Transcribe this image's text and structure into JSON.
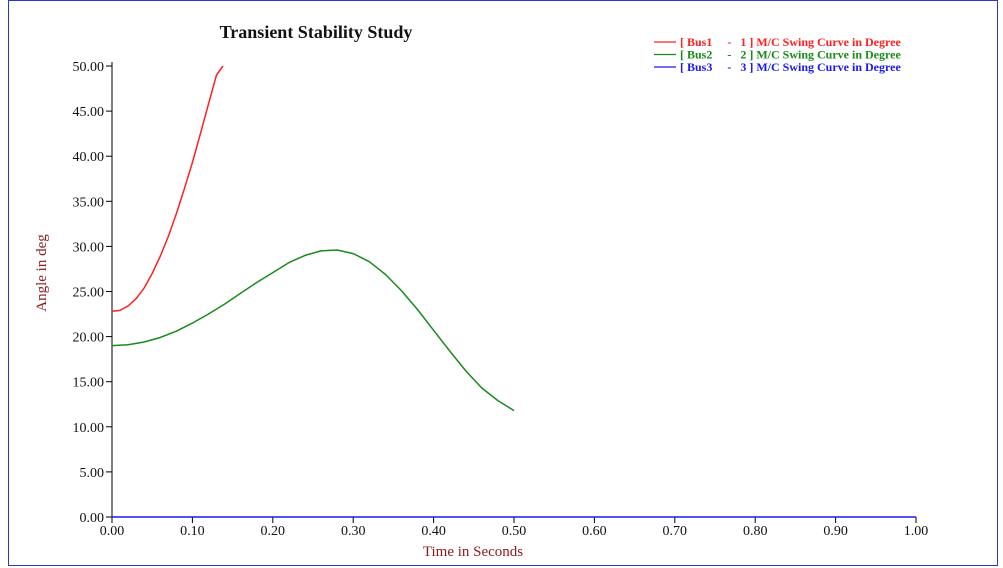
{
  "chart_data": {
    "type": "line",
    "title": "Transient Stability Study",
    "xlabel": "Time in Seconds",
    "ylabel": "Angle in deg",
    "xlim": [
      0,
      1.0
    ],
    "ylim": [
      0,
      50
    ],
    "x_ticks": [
      "0.00",
      "0.10",
      "0.20",
      "0.30",
      "0.40",
      "0.50",
      "0.60",
      "0.70",
      "0.80",
      "0.90",
      "1.00"
    ],
    "y_ticks": [
      "0.00",
      "5.00",
      "10.00",
      "15.00",
      "20.00",
      "25.00",
      "30.00",
      "35.00",
      "40.00",
      "45.00",
      "50.00"
    ],
    "grid": false,
    "legend_position": "top-right",
    "series": [
      {
        "name": "[ Bus1     -   1 ] M/C Swing Curve in Degree",
        "color": "#ff2020",
        "x": [
          0.0,
          0.01,
          0.02,
          0.03,
          0.04,
          0.05,
          0.06,
          0.07,
          0.08,
          0.09,
          0.1,
          0.11,
          0.12,
          0.13,
          0.138
        ],
        "y": [
          22.8,
          22.9,
          23.4,
          24.2,
          25.4,
          27.0,
          28.9,
          31.1,
          33.6,
          36.4,
          39.3,
          42.5,
          45.8,
          49.0,
          50.0
        ]
      },
      {
        "name": "[ Bus2     -   2 ] M/C Swing Curve in Degree",
        "color": "#1a8a1a",
        "x": [
          0.0,
          0.02,
          0.04,
          0.06,
          0.08,
          0.1,
          0.12,
          0.14,
          0.16,
          0.18,
          0.2,
          0.22,
          0.24,
          0.26,
          0.28,
          0.3,
          0.32,
          0.34,
          0.36,
          0.38,
          0.4,
          0.42,
          0.44,
          0.46,
          0.48,
          0.5
        ],
        "y": [
          19.0,
          19.1,
          19.4,
          19.9,
          20.6,
          21.5,
          22.5,
          23.6,
          24.8,
          26.0,
          27.1,
          28.2,
          29.0,
          29.5,
          29.6,
          29.2,
          28.3,
          26.9,
          25.1,
          23.0,
          20.7,
          18.4,
          16.2,
          14.3,
          12.9,
          11.8
        ]
      },
      {
        "name": "[ Bus3     -   3 ] M/C Swing Curve in Degree",
        "color": "#1a1aee",
        "x": [
          0.0,
          0.1,
          0.2,
          0.3,
          0.4,
          0.5,
          0.6,
          0.7,
          0.8,
          0.9,
          1.0
        ],
        "y": [
          0,
          0,
          0,
          0,
          0,
          0,
          0,
          0,
          0,
          0,
          0
        ]
      }
    ]
  }
}
